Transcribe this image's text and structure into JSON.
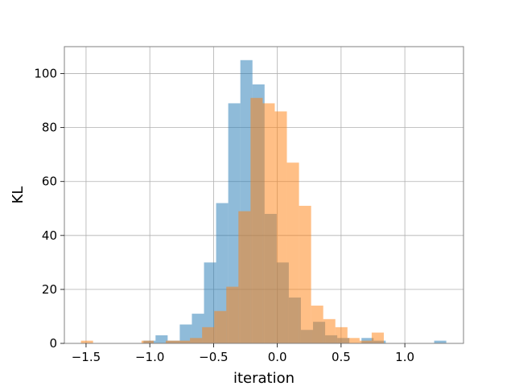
{
  "chart_data": {
    "type": "bar",
    "title": "",
    "xlabel": "iteration",
    "ylabel": "KL",
    "xlim": [
      -1.67,
      1.46
    ],
    "ylim": [
      0,
      110
    ],
    "grid": true,
    "xticks": [
      -1.5,
      -1.0,
      -0.5,
      0.0,
      0.5,
      1.0
    ],
    "xtick_labels": [
      "−1.5",
      "−1.0",
      "−0.5",
      "0.0",
      "0.5",
      "1.0"
    ],
    "yticks": [
      0,
      20,
      40,
      60,
      80,
      100
    ],
    "ytick_labels": [
      "0",
      "20",
      "40",
      "60",
      "80",
      "100"
    ],
    "series": [
      {
        "color": "#1f77b4",
        "opacity": 0.5,
        "bin_edges": [
          -1.05,
          -0.955,
          -0.86,
          -0.765,
          -0.67,
          -0.575,
          -0.48,
          -0.385,
          -0.29,
          -0.195,
          -0.1,
          -0.005,
          0.09,
          0.185,
          0.28,
          0.375,
          0.47,
          0.565,
          0.66,
          0.755,
          0.85,
          0.945,
          1.04,
          1.135,
          1.23,
          1.325
        ],
        "values": [
          1,
          3,
          1,
          7,
          11,
          30,
          52,
          89,
          105,
          96,
          48,
          30,
          17,
          5,
          8,
          3,
          2,
          0,
          2,
          1,
          0,
          0,
          0,
          0,
          1
        ]
      },
      {
        "color": "#ff7f0e",
        "opacity": 0.5,
        "bin_edges": [
          -1.54,
          -1.445,
          -1.35,
          -1.255,
          -1.16,
          -1.065,
          -0.97,
          -0.875,
          -0.78,
          -0.685,
          -0.59,
          -0.495,
          -0.4,
          -0.305,
          -0.21,
          -0.115,
          -0.02,
          0.075,
          0.17,
          0.265,
          0.36,
          0.455,
          0.55,
          0.645,
          0.74,
          0.835
        ],
        "values": [
          1,
          0,
          0,
          0,
          0,
          1,
          0,
          1,
          1,
          2,
          6,
          12,
          21,
          49,
          91,
          89,
          86,
          67,
          51,
          14,
          9,
          6,
          2,
          1,
          4
        ]
      }
    ]
  }
}
